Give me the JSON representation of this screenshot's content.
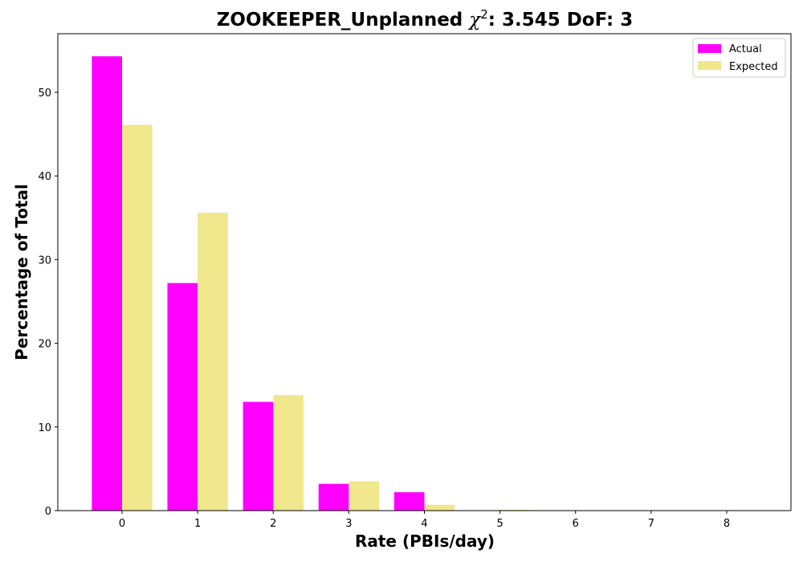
{
  "chart_data": {
    "type": "bar",
    "title_prefix": "ZOOKEEPER_Unplanned ",
    "title_chi": "χ",
    "title_sup": "2",
    "title_suffix": ": 3.545 DoF: 3",
    "xlabel": "Rate (PBIs/day)",
    "ylabel": "Percentage of Total",
    "categories": [
      "0",
      "1",
      "2",
      "3",
      "4",
      "5",
      "6",
      "7",
      "8"
    ],
    "ylim": [
      0,
      57
    ],
    "yticks": [
      0,
      10,
      20,
      30,
      40,
      50
    ],
    "xlim": [
      -0.85,
      8.85
    ],
    "legend_position": "upper right",
    "grid": false,
    "series": [
      {
        "name": "Actual",
        "color": "#ff00ff",
        "values": [
          54.3,
          27.2,
          13.0,
          3.2,
          2.2,
          0,
          0,
          0,
          0
        ]
      },
      {
        "name": "Expected",
        "color": "#f0e68c",
        "values": [
          46.1,
          35.6,
          13.8,
          3.5,
          0.7,
          0.1,
          0,
          0,
          0
        ]
      }
    ]
  }
}
